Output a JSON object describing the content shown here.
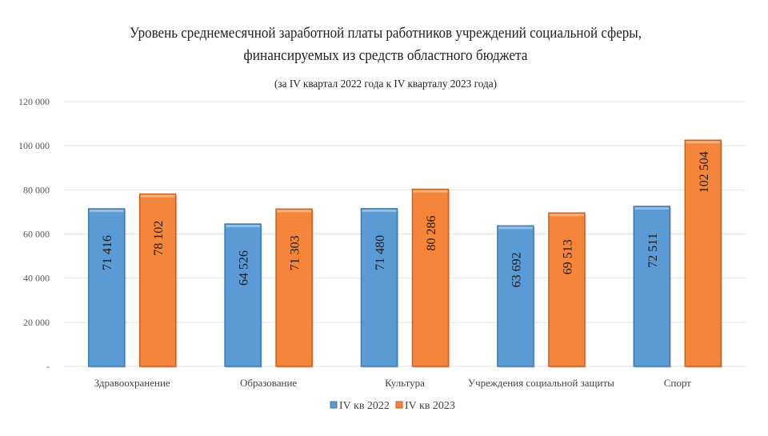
{
  "chart_data": {
    "type": "bar",
    "title": "Уровень среднемесячной заработной платы работников учреждений социальной сферы,",
    "title_line2": "финансируемых из средств областного бюджета",
    "subtitle": "(за IV квартал 2022 года к IV кварталу 2023 года)",
    "xlabel": "",
    "ylabel": "",
    "ylim": [
      0,
      120000
    ],
    "yticks": [
      0,
      20000,
      40000,
      60000,
      80000,
      100000,
      120000
    ],
    "ytick_labels": [
      "-",
      "20 000",
      "40 000",
      "60 000",
      "80 000",
      "100 000",
      "120 000"
    ],
    "grid": true,
    "legend_position": "bottom",
    "categories": [
      "Здравоохранение",
      "Образование",
      "Культура",
      "Учреждения социальной защиты",
      "Спорт"
    ],
    "series": [
      {
        "name": "IV кв 2022",
        "color": "#5B9BD5",
        "values": [
          71416,
          64526,
          71480,
          63692,
          72511
        ],
        "labels": [
          "71 416",
          "64 526",
          "71 480",
          "63 692",
          "72 511"
        ]
      },
      {
        "name": "IV кв 2023",
        "color": "#F5853A",
        "values": [
          78102,
          71303,
          80286,
          69513,
          102504
        ],
        "labels": [
          "78 102",
          "71 303",
          "80 286",
          "69 513",
          "102 504"
        ]
      }
    ]
  }
}
